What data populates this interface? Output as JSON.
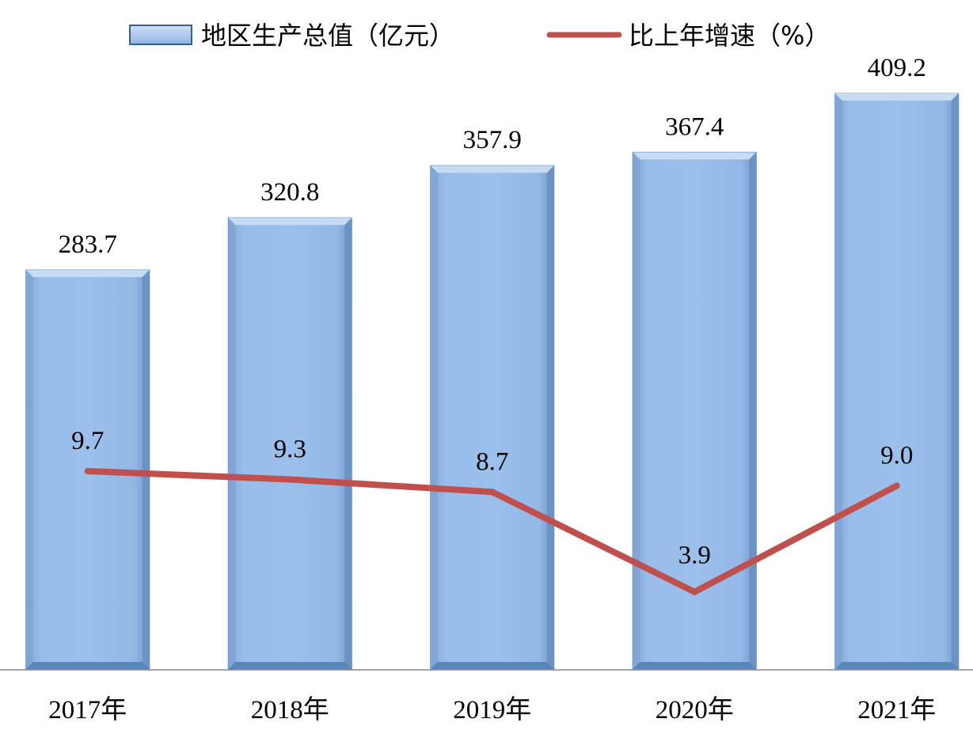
{
  "chart_data": {
    "type": "bar",
    "categories": [
      "2017年",
      "2018年",
      "2019年",
      "2020年",
      "2021年"
    ],
    "series": [
      {
        "name": "地区生产总值（亿元）",
        "type": "bar",
        "axis": "left",
        "values": [
          283.7,
          320.8,
          357.9,
          367.4,
          409.2
        ],
        "labels": [
          "283.7",
          "320.8",
          "357.9",
          "367.4",
          "409.2"
        ],
        "color": "#8db4e2"
      },
      {
        "name": "比上年增速（%）",
        "type": "line",
        "axis": "right",
        "values": [
          9.7,
          9.3,
          8.7,
          3.9,
          9.0
        ],
        "labels": [
          "9.7",
          "9.3",
          "8.7",
          "3.9",
          "9.0"
        ],
        "color": "#c0504d"
      }
    ],
    "legend": "top",
    "grid": false
  }
}
